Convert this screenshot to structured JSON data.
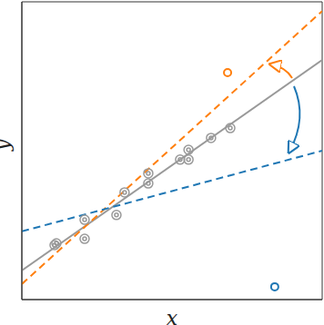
{
  "chart_data": {
    "type": "scatter",
    "x_label": "x",
    "y_label": "y",
    "xlim": [
      0,
      10
    ],
    "ylim": [
      0,
      10
    ],
    "tick_labels": false,
    "grid": false,
    "series": [
      {
        "type": "line",
        "color": "#999999",
        "line_style": "solid",
        "x": [
          0,
          10
        ],
        "values": [
          0.98,
          8.05
        ]
      },
      {
        "type": "scatter",
        "color": "#999999",
        "marker": "target",
        "x": [
          1.09,
          1.15,
          2.09,
          2.09,
          3.15,
          3.42,
          4.21,
          4.21,
          5.27,
          5.55,
          5.55,
          6.3,
          6.94
        ],
        "values": [
          1.83,
          1.89,
          2.68,
          2.04,
          2.84,
          3.6,
          4.24,
          3.9,
          4.7,
          5.03,
          4.7,
          5.43,
          5.76
        ]
      },
      {
        "type": "line",
        "color": "#ff7f0e",
        "line_style": "dashed",
        "x": [
          0,
          10
        ],
        "values": [
          0.52,
          9.69
        ]
      },
      {
        "type": "line",
        "color": "#1f77b4",
        "line_style": "dashed",
        "x": [
          0,
          10
        ],
        "values": [
          2.29,
          5.0
        ]
      },
      {
        "type": "scatter",
        "color": "#ff7f0e",
        "marker": "circle",
        "x": [
          6.85
        ],
        "values": [
          7.62
        ]
      },
      {
        "type": "scatter",
        "color": "#1f77b4",
        "marker": "circle",
        "x": [
          8.42
        ],
        "values": [
          0.43
        ]
      }
    ]
  }
}
